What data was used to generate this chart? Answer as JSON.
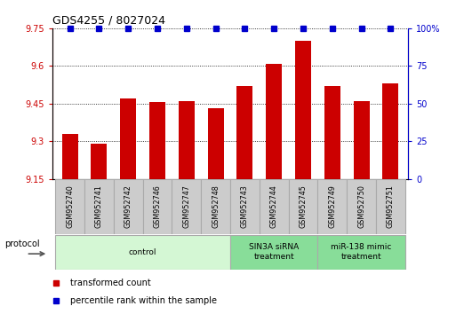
{
  "title": "GDS4255 / 8027024",
  "samples": [
    "GSM952740",
    "GSM952741",
    "GSM952742",
    "GSM952746",
    "GSM952747",
    "GSM952748",
    "GSM952743",
    "GSM952744",
    "GSM952745",
    "GSM952749",
    "GSM952750",
    "GSM952751"
  ],
  "bar_values": [
    9.33,
    9.29,
    9.47,
    9.455,
    9.46,
    9.43,
    9.52,
    9.61,
    9.7,
    9.52,
    9.46,
    9.53
  ],
  "percentile_values": [
    100,
    100,
    100,
    100,
    100,
    100,
    100,
    100,
    100,
    100,
    100,
    100
  ],
  "bar_color": "#cc0000",
  "dot_color": "#0000cc",
  "ylim_left": [
    9.15,
    9.75
  ],
  "yticks_left": [
    9.15,
    9.3,
    9.45,
    9.6,
    9.75
  ],
  "ytick_labels_left": [
    "9.15",
    "9.3",
    "9.45",
    "9.6",
    "9.75"
  ],
  "ylim_right": [
    0,
    100
  ],
  "yticks_right": [
    0,
    25,
    50,
    75,
    100
  ],
  "ytick_labels_right": [
    "0",
    "25",
    "50",
    "75",
    "100%"
  ],
  "group_configs": [
    {
      "indices": [
        0,
        1,
        2,
        3,
        4,
        5
      ],
      "label": "control",
      "facecolor": "#d4f7d4",
      "edgecolor": "#aaaaaa"
    },
    {
      "indices": [
        6,
        7,
        8
      ],
      "label": "SIN3A siRNA\ntreatment",
      "facecolor": "#88dd99",
      "edgecolor": "#aaaaaa"
    },
    {
      "indices": [
        9,
        10,
        11
      ],
      "label": "miR-138 mimic\ntreatment",
      "facecolor": "#88dd99",
      "edgecolor": "#aaaaaa"
    }
  ],
  "tick_box_color": "#cccccc",
  "tick_box_edge": "#aaaaaa",
  "legend_items": [
    {
      "label": "transformed count",
      "color": "#cc0000"
    },
    {
      "label": "percentile rank within the sample",
      "color": "#0000cc"
    }
  ],
  "protocol_label": "protocol"
}
